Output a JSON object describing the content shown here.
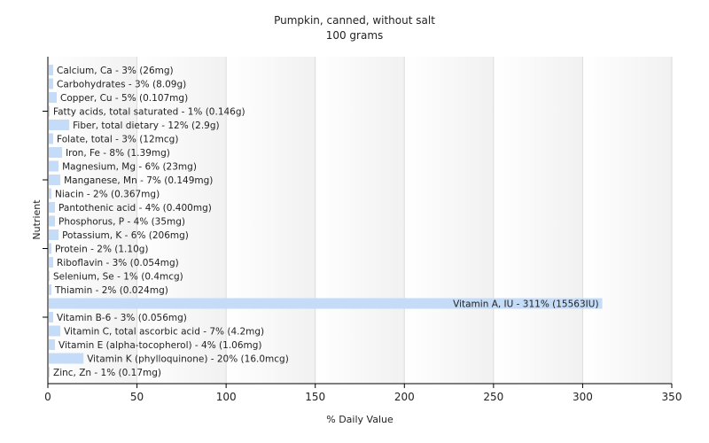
{
  "chart_data": {
    "type": "bar",
    "orientation": "horizontal",
    "title": "Pumpkin, canned, without salt",
    "subtitle": "100 grams",
    "xlabel": "% Daily Value",
    "ylabel": "Nutrient",
    "xlim": [
      0,
      350
    ],
    "xticks": [
      0,
      50,
      100,
      150,
      200,
      250,
      300,
      350
    ],
    "grid": true,
    "bar_color": "#c4dcf7",
    "categories": [
      "Calcium, Ca",
      "Carbohydrates",
      "Copper, Cu",
      "Fatty acids, total saturated",
      "Fiber, total dietary",
      "Folate, total",
      "Iron, Fe",
      "Magnesium, Mg",
      "Manganese, Mn",
      "Niacin",
      "Pantothenic acid",
      "Phosphorus, P",
      "Potassium, K",
      "Protein",
      "Riboflavin",
      "Selenium, Se",
      "Thiamin",
      "Vitamin A, IU",
      "Vitamin B-6",
      "Vitamin C, total ascorbic acid",
      "Vitamin E (alpha-tocopherol)",
      "Vitamin K (phylloquinone)",
      "Zinc, Zn"
    ],
    "values": [
      3,
      3,
      5,
      1,
      12,
      3,
      8,
      6,
      7,
      2,
      4,
      4,
      6,
      2,
      3,
      1,
      2,
      311,
      3,
      7,
      4,
      20,
      1
    ],
    "labels": [
      "Calcium, Ca - 3% (26mg)",
      "Carbohydrates - 3% (8.09g)",
      "Copper, Cu - 5% (0.107mg)",
      "Fatty acids, total saturated - 1% (0.146g)",
      "Fiber, total dietary - 12% (2.9g)",
      "Folate, total - 3% (12mcg)",
      "Iron, Fe - 8% (1.39mg)",
      "Magnesium, Mg - 6% (23mg)",
      "Manganese, Mn - 7% (0.149mg)",
      "Niacin - 2% (0.367mg)",
      "Pantothenic acid - 4% (0.400mg)",
      "Phosphorus, P - 4% (35mg)",
      "Potassium, K - 6% (206mg)",
      "Protein - 2% (1.10g)",
      "Riboflavin - 3% (0.054mg)",
      "Selenium, Se - 1% (0.4mcg)",
      "Thiamin - 2% (0.024mg)",
      "Vitamin A, IU - 311% (15563IU)",
      "Vitamin B-6 - 3% (0.056mg)",
      "Vitamin C, total ascorbic acid - 7% (4.2mg)",
      "Vitamin E (alpha-tocopherol) - 4% (1.06mg)",
      "Vitamin K (phylloquinone) - 20% (16.0mcg)",
      "Zinc, Zn - 1% (0.17mg)"
    ]
  }
}
